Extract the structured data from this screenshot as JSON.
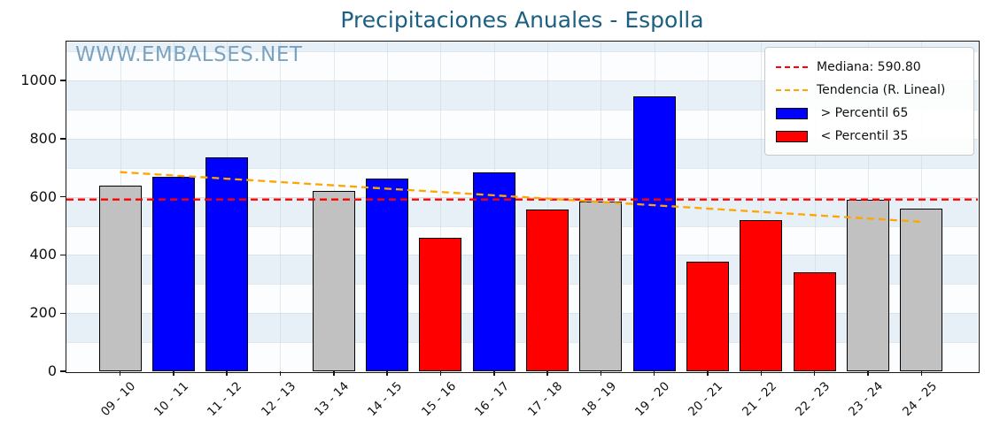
{
  "title": "Precipitaciones Anuales - Espolla",
  "watermark": "WWW.EMBALSES.NET",
  "chart_data": {
    "type": "bar",
    "title": "Precipitaciones Anuales - Espolla",
    "categories": [
      "09 - 10",
      "10 - 11",
      "11 - 12",
      "12 - 13",
      "13 - 14",
      "14 - 15",
      "15 - 16",
      "16 - 17",
      "17 - 18",
      "18 - 19",
      "19 - 20",
      "20 - 21",
      "21 - 22",
      "22 - 23",
      "23 - 24",
      "24 - 25"
    ],
    "values": [
      637,
      668,
      737,
      null,
      621,
      663,
      459,
      685,
      555,
      584,
      947,
      377,
      521,
      340,
      591,
      559
    ],
    "point_class": [
      "mid",
      "high",
      "high",
      null,
      "mid",
      "high",
      "low",
      "high",
      "low",
      "mid",
      "high",
      "low",
      "low",
      "low",
      "mid",
      "mid"
    ],
    "median": 590.8,
    "trend_line": {
      "label": "Tendencia (R. Lineal)",
      "start_value": 685,
      "end_value": 514
    },
    "ylim": [
      0,
      1134
    ],
    "yticks": [
      0,
      200,
      400,
      600,
      800,
      1000
    ],
    "grid": true,
    "legend_position": "upper right",
    "legend": [
      {
        "label": "Mediana: 590.80",
        "swatch": "dashed-line",
        "color": "#ff0000"
      },
      {
        "label": "Tendencia (R. Lineal)",
        "swatch": "dashed-line",
        "color": "#ffa500"
      },
      {
        "label": " > Percentil 65",
        "swatch": "patch",
        "color": "#0000ff"
      },
      {
        "label": " < Percentil 35",
        "swatch": "patch",
        "color": "#ff0000"
      }
    ],
    "colors": {
      "high": "#0000ff",
      "low": "#ff0000",
      "mid": "#c1c1c1",
      "median_line": "#ff0000",
      "trend_line": "#ffa500",
      "band_light": "#e7f0f7",
      "band_white": "#fbfdfe",
      "gridline": "#ccd7e0",
      "title": "#1b5f82",
      "watermark": "#5d8fb3",
      "legend_bg": "rgba(255,255,255,0.88)"
    }
  }
}
